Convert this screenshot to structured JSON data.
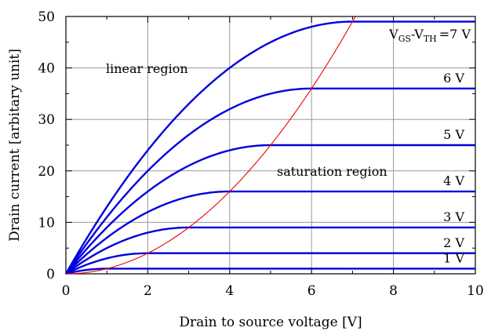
{
  "chart_data": {
    "type": "line",
    "xlabel": "Drain to source voltage [V]",
    "ylabel": "Drain current [arbitary unit]",
    "xlim": [
      0,
      10
    ],
    "ylim": [
      0,
      50
    ],
    "x_ticks": [
      "0",
      "2",
      "4",
      "6",
      "8",
      "10"
    ],
    "y_ticks": [
      "0",
      "10",
      "20",
      "30",
      "40",
      "50"
    ],
    "grid": true,
    "series": [
      {
        "name": "1 V",
        "vov": 1,
        "color": "#0000dd"
      },
      {
        "name": "2 V",
        "vov": 2,
        "color": "#0000dd"
      },
      {
        "name": "3 V",
        "vov": 3,
        "color": "#0000dd"
      },
      {
        "name": "4 V",
        "vov": 4,
        "color": "#0000dd"
      },
      {
        "name": "5 V",
        "vov": 5,
        "color": "#0000dd"
      },
      {
        "name": "6 V",
        "vov": 6,
        "color": "#0000dd"
      },
      {
        "name": "=7 V",
        "vov": 7,
        "color": "#0000dd"
      }
    ],
    "model": "I = 2*V*x - x^2 for x < V, I = V^2 for x >= V",
    "boundary": {
      "equation": "I = x^2",
      "color": "#ee0000"
    },
    "top_label_prefix": {
      "v": "V",
      "gs": "GS",
      "dash": "-",
      "vth_v": "V",
      "th": "TH"
    },
    "annotations": {
      "linear_region": "linear region",
      "saturation_region": "saturation region"
    }
  }
}
